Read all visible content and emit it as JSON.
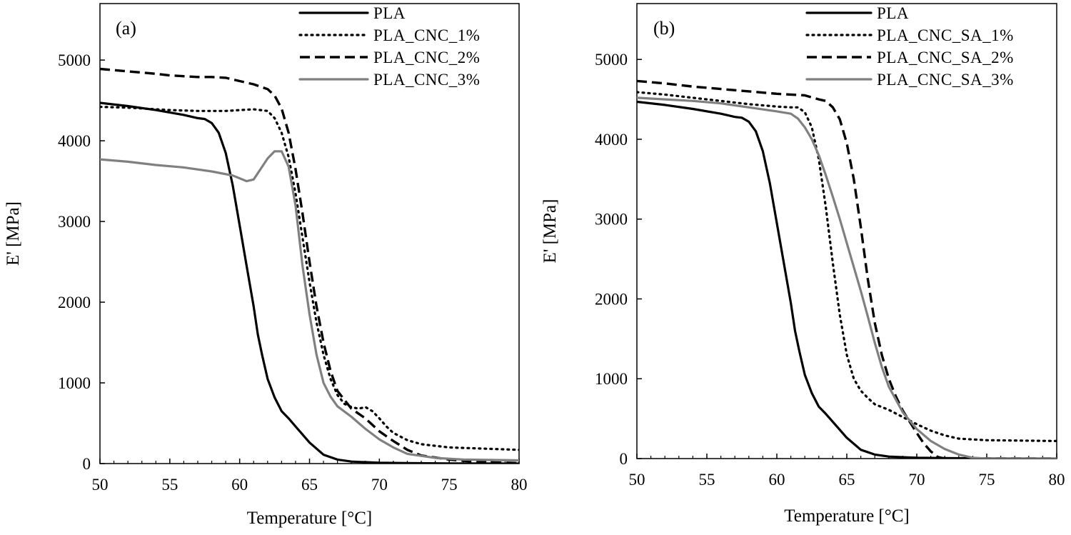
{
  "chart_data": [
    {
      "type": "line",
      "panel_label": "(a)",
      "xlabel": "Temperature [°C]",
      "ylabel": "E' [MPa]",
      "xlim": [
        50,
        80
      ],
      "ylim": [
        0,
        5700
      ],
      "xticks": [
        50,
        55,
        60,
        65,
        70,
        75,
        80
      ],
      "yticks": [
        0,
        1000,
        2000,
        3000,
        4000,
        5000
      ],
      "grid": false,
      "legend_position": "top-right",
      "series": [
        {
          "name": "PLA",
          "style": "solid",
          "color": "#000000",
          "x": [
            50,
            52,
            54,
            56,
            57,
            57.5,
            58,
            58.5,
            59,
            59.5,
            60,
            60.5,
            61,
            61.3,
            61.6,
            62,
            62.5,
            63,
            63.5,
            64,
            65,
            66,
            67,
            68,
            70,
            72,
            75,
            80
          ],
          "y": [
            4470,
            4430,
            4380,
            4320,
            4280,
            4270,
            4220,
            4100,
            3850,
            3450,
            2950,
            2450,
            1950,
            1600,
            1350,
            1050,
            820,
            650,
            560,
            460,
            260,
            110,
            50,
            25,
            10,
            5,
            2,
            0
          ]
        },
        {
          "name": "PLA_CNC_1%",
          "style": "dotted",
          "color": "#000000",
          "x": [
            50,
            52,
            55,
            57,
            59,
            61,
            62,
            62.5,
            63,
            63.5,
            64,
            64.5,
            65,
            65.5,
            66,
            66.5,
            67,
            67.5,
            68,
            68.5,
            69,
            69.5,
            70,
            70.5,
            71,
            72,
            73,
            75,
            80
          ],
          "y": [
            4420,
            4410,
            4380,
            4370,
            4370,
            4390,
            4370,
            4280,
            4100,
            3800,
            3350,
            2800,
            2250,
            1750,
            1350,
            1050,
            850,
            740,
            700,
            680,
            700,
            650,
            560,
            460,
            380,
            290,
            240,
            200,
            170
          ]
        },
        {
          "name": "PLA_CNC_2%",
          "style": "dashed",
          "color": "#000000",
          "x": [
            50,
            52,
            54,
            55,
            56,
            57,
            58,
            59,
            60,
            61,
            62,
            62.5,
            63,
            63.5,
            64,
            64.5,
            65,
            65.5,
            66,
            66.5,
            67,
            68,
            69,
            70,
            71,
            72,
            73,
            75,
            77,
            80
          ],
          "y": [
            4890,
            4860,
            4830,
            4810,
            4800,
            4790,
            4790,
            4780,
            4740,
            4700,
            4640,
            4560,
            4400,
            4100,
            3650,
            3100,
            2500,
            1950,
            1500,
            1150,
            900,
            680,
            560,
            400,
            280,
            170,
            100,
            50,
            20,
            5
          ]
        },
        {
          "name": "PLA_CNC_3%",
          "style": "solid",
          "color": "#808080",
          "x": [
            50,
            52,
            54,
            56,
            58,
            59.5,
            60.5,
            61,
            61.5,
            62,
            62.5,
            63,
            63.5,
            64,
            64.5,
            65,
            65.5,
            66,
            66.5,
            67,
            68,
            69,
            70,
            71,
            72,
            74,
            76,
            80
          ],
          "y": [
            3770,
            3740,
            3700,
            3670,
            3620,
            3570,
            3500,
            3520,
            3650,
            3780,
            3870,
            3870,
            3680,
            3200,
            2450,
            1850,
            1350,
            1000,
            830,
            710,
            580,
            430,
            300,
            200,
            120,
            70,
            50,
            40
          ]
        }
      ]
    },
    {
      "type": "line",
      "panel_label": "(b)",
      "xlabel": "Temperature [°C]",
      "ylabel": "E' [MPa]",
      "xlim": [
        50,
        80
      ],
      "ylim": [
        0,
        5700
      ],
      "xticks": [
        50,
        55,
        60,
        65,
        70,
        75,
        80
      ],
      "yticks": [
        0,
        1000,
        2000,
        3000,
        4000,
        5000
      ],
      "grid": false,
      "legend_position": "top-right",
      "series": [
        {
          "name": "PLA",
          "style": "solid",
          "color": "#000000",
          "x": [
            50,
            52,
            54,
            56,
            57,
            57.5,
            58,
            58.5,
            59,
            59.5,
            60,
            60.5,
            61,
            61.3,
            61.6,
            62,
            62.5,
            63,
            63.5,
            64,
            65,
            66,
            67,
            68,
            70,
            72,
            75,
            80
          ],
          "y": [
            4470,
            4430,
            4380,
            4320,
            4280,
            4270,
            4220,
            4100,
            3850,
            3450,
            2950,
            2450,
            1950,
            1600,
            1350,
            1050,
            820,
            650,
            560,
            460,
            260,
            110,
            50,
            25,
            10,
            5,
            2,
            0
          ]
        },
        {
          "name": "PLA_CNC_SA_1%",
          "style": "dotted",
          "color": "#000000",
          "x": [
            50,
            52,
            54,
            56,
            58,
            60,
            61,
            61.5,
            62,
            62.5,
            63,
            63.5,
            64,
            64.5,
            65,
            65.5,
            66,
            66.5,
            67,
            68,
            69,
            70,
            71,
            72,
            73,
            75,
            80
          ],
          "y": [
            4590,
            4560,
            4520,
            4480,
            4440,
            4410,
            4400,
            4400,
            4340,
            4150,
            3750,
            3150,
            2450,
            1800,
            1300,
            1000,
            850,
            760,
            680,
            610,
            520,
            430,
            350,
            290,
            250,
            230,
            220
          ]
        },
        {
          "name": "PLA_CNC_SA_2%",
          "style": "dashed",
          "color": "#000000",
          "x": [
            50,
            52,
            54,
            56,
            58,
            60,
            62,
            63,
            63.5,
            64,
            64.5,
            65,
            65.5,
            66,
            66.5,
            67,
            67.5,
            68,
            68.5,
            69,
            69.5,
            70,
            70.5,
            71,
            71.5,
            72,
            80
          ],
          "y": [
            4730,
            4700,
            4660,
            4630,
            4600,
            4570,
            4550,
            4500,
            4480,
            4400,
            4250,
            3950,
            3500,
            2900,
            2250,
            1700,
            1300,
            1000,
            780,
            600,
            460,
            320,
            190,
            90,
            20,
            0,
            0
          ]
        },
        {
          "name": "PLA_CNC_SA_3%",
          "style": "solid",
          "color": "#808080",
          "x": [
            50,
            52,
            54,
            56,
            58,
            60,
            61,
            61.5,
            62,
            62.5,
            63,
            63.5,
            64,
            64.5,
            65,
            65.5,
            66,
            66.5,
            67,
            67.5,
            68,
            69,
            70,
            71,
            72,
            73,
            74,
            75,
            80
          ],
          "y": [
            4520,
            4500,
            4480,
            4450,
            4400,
            4350,
            4320,
            4260,
            4150,
            4000,
            3800,
            3550,
            3280,
            3000,
            2700,
            2400,
            2100,
            1780,
            1450,
            1150,
            900,
            580,
            370,
            220,
            120,
            50,
            10,
            0,
            0
          ]
        }
      ]
    }
  ]
}
